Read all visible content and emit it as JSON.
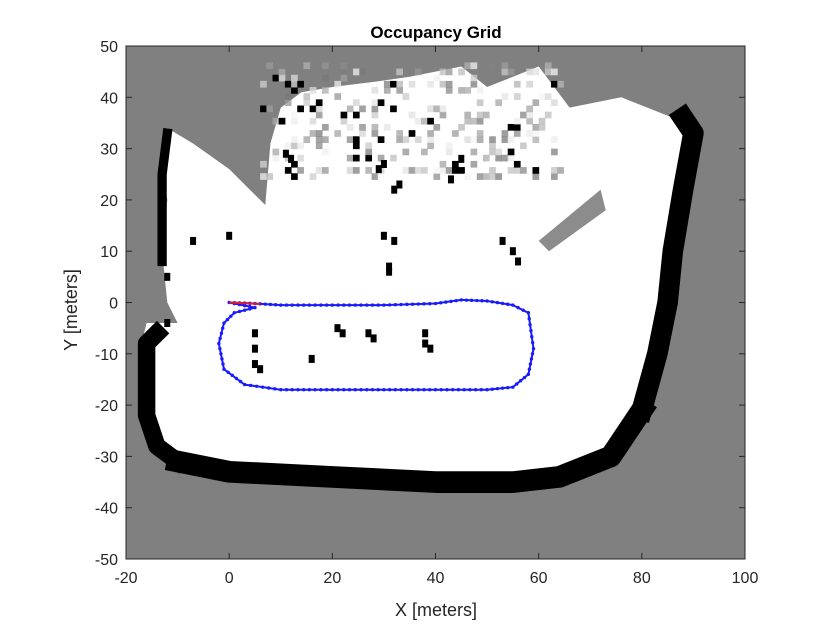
{
  "chart_data": {
    "type": "heatmap",
    "title": "Occupancy Grid",
    "xlabel": "X [meters]",
    "ylabel": "Y [meters]",
    "xlim": [
      -20,
      100
    ],
    "ylim": [
      -50,
      50
    ],
    "xticks": [
      -20,
      0,
      20,
      40,
      60,
      80,
      100
    ],
    "yticks": [
      -50,
      -40,
      -30,
      -20,
      -10,
      0,
      10,
      20,
      30,
      40,
      50
    ],
    "grid": false,
    "colors": {
      "unknown": "#808080",
      "free": "#ffffff",
      "occupied": "#000000",
      "path": "#1a1aff",
      "path_start": "#e02020"
    },
    "free_region": [
      [
        -10,
        -31
      ],
      [
        -14,
        -28
      ],
      [
        -17,
        -22
      ],
      [
        -17,
        -8
      ],
      [
        -16,
        -4
      ],
      [
        -10,
        -4
      ],
      [
        -12,
        0
      ],
      [
        -13,
        10
      ],
      [
        -12,
        20
      ],
      [
        -13,
        27
      ],
      [
        -12,
        34
      ],
      [
        -7,
        31
      ],
      [
        0,
        26
      ],
      [
        6,
        20
      ],
      [
        7,
        19
      ],
      [
        8,
        31
      ],
      [
        10,
        38
      ],
      [
        14,
        41
      ],
      [
        20,
        42
      ],
      [
        28,
        43
      ],
      [
        35,
        44
      ],
      [
        45,
        46
      ],
      [
        50,
        42
      ],
      [
        55,
        44
      ],
      [
        60,
        46
      ],
      [
        66,
        38
      ],
      [
        76,
        40
      ],
      [
        86,
        36
      ],
      [
        90,
        34
      ],
      [
        89,
        24
      ],
      [
        86,
        10
      ],
      [
        85,
        0
      ],
      [
        83,
        -10
      ],
      [
        80,
        -20
      ],
      [
        74,
        -30
      ],
      [
        64,
        -34
      ],
      [
        55,
        -36
      ],
      [
        40,
        -35
      ],
      [
        20,
        -34
      ],
      [
        0,
        -33
      ],
      [
        -10,
        -31
      ]
    ],
    "wall_bands": [
      {
        "name": "left-wall",
        "points": [
          [
            -10,
            -31
          ],
          [
            -14,
            -28
          ],
          [
            -16,
            -22
          ],
          [
            -16,
            -8
          ],
          [
            -14,
            -6
          ]
        ],
        "width": 3.4
      },
      {
        "name": "bottom-wall",
        "points": [
          [
            -10,
            -31
          ],
          [
            0,
            -33
          ],
          [
            20,
            -34
          ],
          [
            40,
            -35
          ],
          [
            55,
            -35
          ],
          [
            64,
            -34
          ],
          [
            74,
            -30
          ],
          [
            80,
            -21
          ]
        ],
        "width": 4.2
      },
      {
        "name": "right-wall",
        "points": [
          [
            80,
            -21
          ],
          [
            83,
            -10
          ],
          [
            85,
            0
          ],
          [
            86,
            10
          ],
          [
            88,
            22
          ],
          [
            90,
            33
          ],
          [
            88,
            36
          ]
        ],
        "width": 4.0
      },
      {
        "name": "upper-left-wall",
        "points": [
          [
            -13,
            8
          ],
          [
            -13,
            16
          ],
          [
            -13,
            25
          ],
          [
            -12,
            33
          ]
        ],
        "width": 1.8
      }
    ],
    "gray_wedge": [
      [
        60,
        12
      ],
      [
        72,
        22
      ],
      [
        73,
        18
      ],
      [
        62,
        10
      ]
    ],
    "obstacles": [
      [
        5,
        -6
      ],
      [
        5,
        -9
      ],
      [
        5,
        -12
      ],
      [
        6,
        -13
      ],
      [
        21,
        -5
      ],
      [
        22,
        -6
      ],
      [
        27,
        -6
      ],
      [
        28,
        -7
      ],
      [
        38,
        -6
      ],
      [
        38,
        -8
      ],
      [
        39,
        -9
      ],
      [
        30,
        13
      ],
      [
        32,
        12
      ],
      [
        31,
        7
      ],
      [
        31,
        6
      ],
      [
        53,
        12
      ],
      [
        55,
        10
      ],
      [
        56,
        8
      ],
      [
        11,
        29
      ],
      [
        12,
        28
      ],
      [
        -7,
        12
      ],
      [
        0,
        13
      ],
      [
        -12,
        5
      ],
      [
        -12,
        -4
      ],
      [
        16,
        -11
      ],
      [
        43,
        24
      ],
      [
        45,
        28
      ],
      [
        29,
        26
      ],
      [
        30,
        27
      ],
      [
        32,
        22
      ],
      [
        33,
        23
      ]
    ],
    "noise_region": {
      "x": [
        6,
        64
      ],
      "y": [
        24,
        46
      ]
    },
    "robot_path": {
      "start": [
        0,
        0
      ],
      "x": [
        0,
        5,
        10,
        20,
        30,
        40,
        45,
        50,
        55,
        58,
        59,
        58,
        55,
        50,
        40,
        30,
        20,
        10,
        3,
        -1,
        -2,
        -1,
        1,
        5,
        0
      ],
      "y": [
        0,
        -0.2,
        -0.5,
        -0.5,
        -0.5,
        -0.2,
        0.5,
        0.3,
        -0.5,
        -2,
        -9,
        -14,
        -16.5,
        -17,
        -17,
        -17,
        -17,
        -17,
        -16,
        -13,
        -8,
        -4,
        -2,
        -1,
        0
      ]
    }
  }
}
